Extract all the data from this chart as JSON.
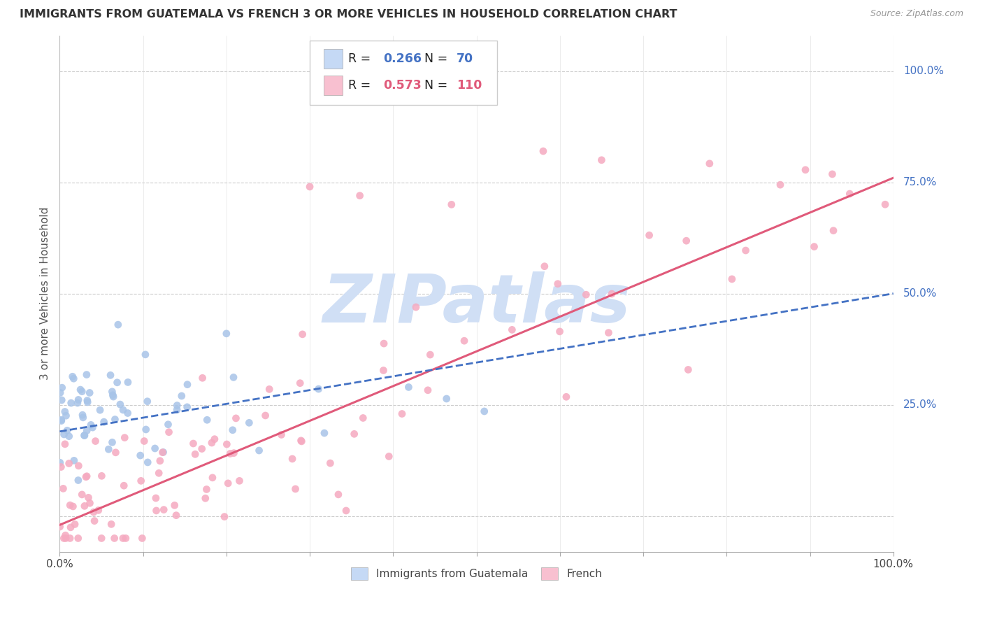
{
  "title": "IMMIGRANTS FROM GUATEMALA VS FRENCH 3 OR MORE VEHICLES IN HOUSEHOLD CORRELATION CHART",
  "source": "Source: ZipAtlas.com",
  "ylabel": "3 or more Vehicles in Household",
  "xlim": [
    0,
    1
  ],
  "ylim": [
    -0.08,
    1.08
  ],
  "guatemala_R": 0.266,
  "guatemala_N": 70,
  "french_R": 0.573,
  "french_N": 110,
  "guatemala_color": "#a8c4e8",
  "french_color": "#f5aac0",
  "guatemala_line_color": "#4472c4",
  "french_line_color": "#e05a7a",
  "watermark_text": "ZIPatlas",
  "watermark_color": "#d0dff5",
  "background_color": "#ffffff",
  "grid_color": "#cccccc",
  "legend_box_color_guatemala": "#c5d9f5",
  "legend_box_color_french": "#f8c0d0",
  "ytick_positions": [
    0.0,
    0.25,
    0.5,
    0.75,
    1.0
  ],
  "ytick_labels_right": [
    "",
    "25.0%",
    "50.0%",
    "75.0%",
    "100.0%"
  ],
  "xtick_positions": [
    0.0,
    0.1,
    0.2,
    0.3,
    0.4,
    0.5,
    0.6,
    0.7,
    0.8,
    0.9,
    1.0
  ],
  "french_line_start_y": -0.02,
  "french_line_end_y": 0.76,
  "guatemala_line_start_y": 0.19,
  "guatemala_line_end_y": 0.5
}
